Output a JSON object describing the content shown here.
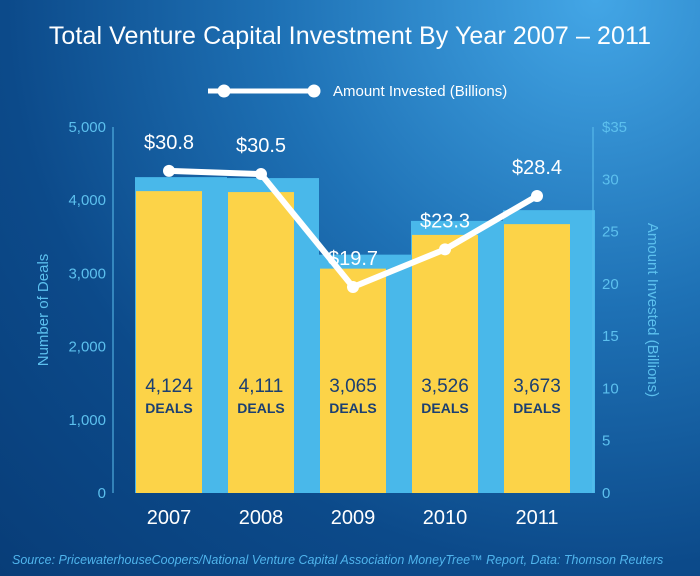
{
  "title": "Total Venture Capital Investment By Year 2007 – 2011",
  "source": "Source: PricewaterhouseCoopers/National Venture Capital Association MoneyTree™ Report, Data: Thomson Reuters",
  "colors": {
    "deals_bar": "#fcd348",
    "bar_backdrop": "#49b8ea",
    "line": "#ffffff",
    "axis_text": "#5cc0ee",
    "deals_text": "#1b3f72"
  },
  "chart_data": {
    "type": "bar+line",
    "categories": [
      "2007",
      "2008",
      "2009",
      "2010",
      "2011"
    ],
    "deals": {
      "values": [
        4124,
        4111,
        3065,
        3526,
        3673
      ],
      "labels": [
        "4,124",
        "4,111",
        "3,065",
        "3,526",
        "3,673"
      ],
      "unit_label": "DEALS"
    },
    "amount": {
      "name": "Amount Invested (Billions)",
      "values": [
        30.8,
        30.5,
        19.7,
        23.3,
        28.4
      ],
      "labels": [
        "$30.8",
        "$30.5",
        "$19.7",
        "$23.3",
        "$28.4"
      ]
    },
    "y_left": {
      "label": "Number of Deals",
      "ylim": [
        0,
        5000
      ],
      "ticks": [
        "0",
        "1,000",
        "2,000",
        "3,000",
        "4,000",
        "5,000"
      ]
    },
    "y_right": {
      "label": "Amount Invested (Billions)",
      "ylim": [
        0,
        35
      ],
      "ticks": [
        "0",
        "5",
        "10",
        "15",
        "20",
        "25",
        "30",
        "$35"
      ]
    },
    "legend_position": "top-center"
  }
}
